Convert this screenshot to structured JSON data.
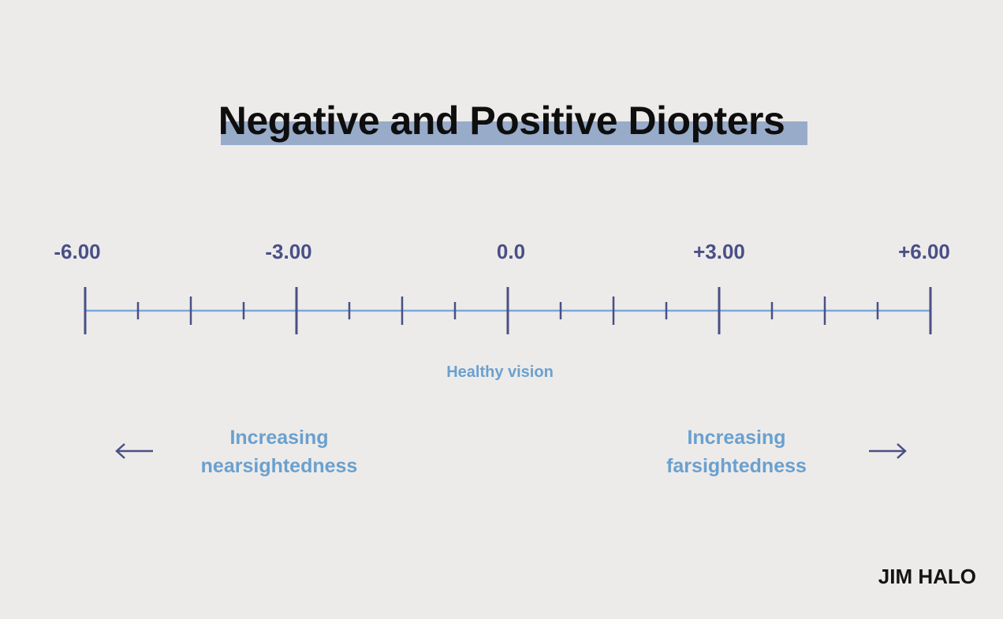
{
  "title": "Negative and Positive Diopters",
  "scale": {
    "min": -6,
    "max": 6,
    "major_labels": [
      "-6.00",
      "-3.00",
      "0.0",
      "+3.00",
      "+6.00"
    ],
    "major_values": [
      -6,
      -3,
      0,
      3,
      6
    ],
    "minor_values": [
      -5.25,
      -4.5,
      -3.75,
      -2.25,
      -1.5,
      -0.75,
      0.75,
      1.5,
      2.25,
      3.75,
      4.5,
      5.25
    ],
    "medium_values": [
      -4.5,
      -1.5,
      1.5,
      4.5
    ],
    "line_color": "#7aa8dd",
    "tick_color": "#4a4f86"
  },
  "center_label": "Healthy vision",
  "left_direction": {
    "line1": "Increasing",
    "line2": "nearsightedness"
  },
  "right_direction": {
    "line1": "Increasing",
    "line2": "farsightedness"
  },
  "brand": "JIM HALO",
  "colors": {
    "background": "#edebe9",
    "title_highlight": "#98abc9",
    "label_blue": "#6aa0cf",
    "dark_indigo": "#4a4f86"
  }
}
